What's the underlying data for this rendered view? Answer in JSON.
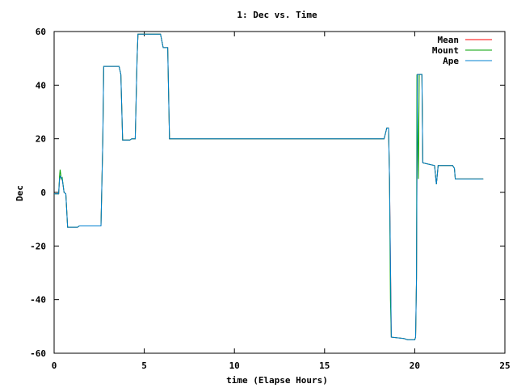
{
  "chart_data": {
    "type": "line",
    "title": "1: Dec vs. Time",
    "xlabel": "time (Elapse Hours)",
    "ylabel": "Dec",
    "xlim": [
      0,
      25
    ],
    "ylim": [
      -60,
      60
    ],
    "xticks": [
      0,
      5,
      10,
      15,
      20,
      25
    ],
    "yticks": [
      -60,
      -40,
      -20,
      0,
      20,
      40,
      60
    ],
    "grid": false,
    "legend_position": "top-right",
    "series": [
      {
        "name": "Mean",
        "color": "#ff0000",
        "points": [
          [
            0.0,
            -0.5
          ],
          [
            0.25,
            -0.5
          ],
          [
            0.3,
            5
          ],
          [
            0.35,
            6
          ],
          [
            0.45,
            5
          ],
          [
            0.55,
            0
          ],
          [
            0.65,
            -0.5
          ],
          [
            0.75,
            -13
          ],
          [
            1.3,
            -13
          ],
          [
            1.4,
            -12.5
          ],
          [
            2.6,
            -12.5
          ],
          [
            2.7,
            20
          ],
          [
            2.75,
            47
          ],
          [
            3.6,
            47
          ],
          [
            3.7,
            44
          ],
          [
            3.8,
            19.5
          ],
          [
            4.2,
            19.5
          ],
          [
            4.3,
            20
          ],
          [
            4.5,
            20
          ],
          [
            4.6,
            50
          ],
          [
            4.65,
            59
          ],
          [
            5.9,
            59
          ],
          [
            6.05,
            54
          ],
          [
            6.3,
            54
          ],
          [
            6.4,
            20
          ],
          [
            18.3,
            20
          ],
          [
            18.45,
            24
          ],
          [
            18.55,
            24
          ],
          [
            18.6,
            5
          ],
          [
            18.7,
            -54
          ],
          [
            19.4,
            -54.5
          ],
          [
            19.6,
            -55
          ],
          [
            20.0,
            -55
          ],
          [
            20.05,
            -54
          ],
          [
            20.1,
            -32
          ],
          [
            20.15,
            44
          ],
          [
            20.4,
            44
          ],
          [
            20.45,
            11
          ],
          [
            21.1,
            10
          ],
          [
            21.2,
            3
          ],
          [
            21.3,
            10
          ],
          [
            22.1,
            10
          ],
          [
            22.2,
            9
          ],
          [
            22.25,
            5
          ],
          [
            23.8,
            5
          ]
        ]
      },
      {
        "name": "Mount",
        "color": "#00a000",
        "points": [
          [
            0.0,
            -0.5
          ],
          [
            0.25,
            -0.5
          ],
          [
            0.3,
            6
          ],
          [
            0.33,
            8.5
          ],
          [
            0.4,
            5
          ],
          [
            0.45,
            5.5
          ],
          [
            0.55,
            0
          ],
          [
            0.65,
            -0.5
          ],
          [
            0.75,
            -13
          ],
          [
            1.3,
            -13
          ],
          [
            1.4,
            -12.5
          ],
          [
            2.6,
            -12.5
          ],
          [
            2.7,
            20
          ],
          [
            2.75,
            47
          ],
          [
            3.6,
            47
          ],
          [
            3.7,
            44
          ],
          [
            3.8,
            19.5
          ],
          [
            4.2,
            19.5
          ],
          [
            4.3,
            20
          ],
          [
            4.5,
            20
          ],
          [
            4.6,
            50
          ],
          [
            4.65,
            59
          ],
          [
            5.9,
            59
          ],
          [
            6.05,
            54
          ],
          [
            6.3,
            54
          ],
          [
            6.4,
            20
          ],
          [
            18.3,
            20
          ],
          [
            18.45,
            24
          ],
          [
            18.55,
            24
          ],
          [
            18.6,
            5
          ],
          [
            18.65,
            -40
          ],
          [
            18.7,
            -54
          ],
          [
            19.4,
            -54.5
          ],
          [
            19.6,
            -55
          ],
          [
            20.0,
            -55
          ],
          [
            20.05,
            -54
          ],
          [
            20.1,
            -32
          ],
          [
            20.12,
            44
          ],
          [
            20.2,
            5
          ],
          [
            20.25,
            44
          ],
          [
            20.4,
            44
          ],
          [
            20.45,
            11
          ],
          [
            21.1,
            10
          ],
          [
            21.2,
            3
          ],
          [
            21.3,
            10
          ],
          [
            22.1,
            10
          ],
          [
            22.2,
            9
          ],
          [
            22.25,
            5
          ],
          [
            23.8,
            5
          ]
        ]
      },
      {
        "name": "Ape",
        "color": "#0080d0",
        "points": [
          [
            0.0,
            -0.5
          ],
          [
            0.25,
            -0.5
          ],
          [
            0.3,
            5
          ],
          [
            0.35,
            6
          ],
          [
            0.45,
            5
          ],
          [
            0.55,
            0
          ],
          [
            0.65,
            -0.5
          ],
          [
            0.75,
            -13
          ],
          [
            1.3,
            -13
          ],
          [
            1.4,
            -12.5
          ],
          [
            2.6,
            -12.5
          ],
          [
            2.7,
            20
          ],
          [
            2.75,
            47
          ],
          [
            3.6,
            47
          ],
          [
            3.7,
            44
          ],
          [
            3.8,
            19.5
          ],
          [
            4.2,
            19.5
          ],
          [
            4.3,
            20
          ],
          [
            4.5,
            20
          ],
          [
            4.6,
            50
          ],
          [
            4.65,
            59
          ],
          [
            5.9,
            59
          ],
          [
            6.05,
            54
          ],
          [
            6.3,
            54
          ],
          [
            6.4,
            20
          ],
          [
            18.3,
            20
          ],
          [
            18.45,
            24
          ],
          [
            18.55,
            24
          ],
          [
            18.6,
            5
          ],
          [
            18.7,
            -54
          ],
          [
            19.4,
            -54.5
          ],
          [
            19.6,
            -55
          ],
          [
            20.0,
            -55
          ],
          [
            20.05,
            -54
          ],
          [
            20.1,
            -32
          ],
          [
            20.15,
            44
          ],
          [
            20.4,
            44
          ],
          [
            20.45,
            11
          ],
          [
            21.1,
            10
          ],
          [
            21.2,
            3
          ],
          [
            21.3,
            10
          ],
          [
            22.1,
            10
          ],
          [
            22.2,
            9
          ],
          [
            22.25,
            5
          ],
          [
            23.8,
            5
          ]
        ]
      }
    ]
  }
}
